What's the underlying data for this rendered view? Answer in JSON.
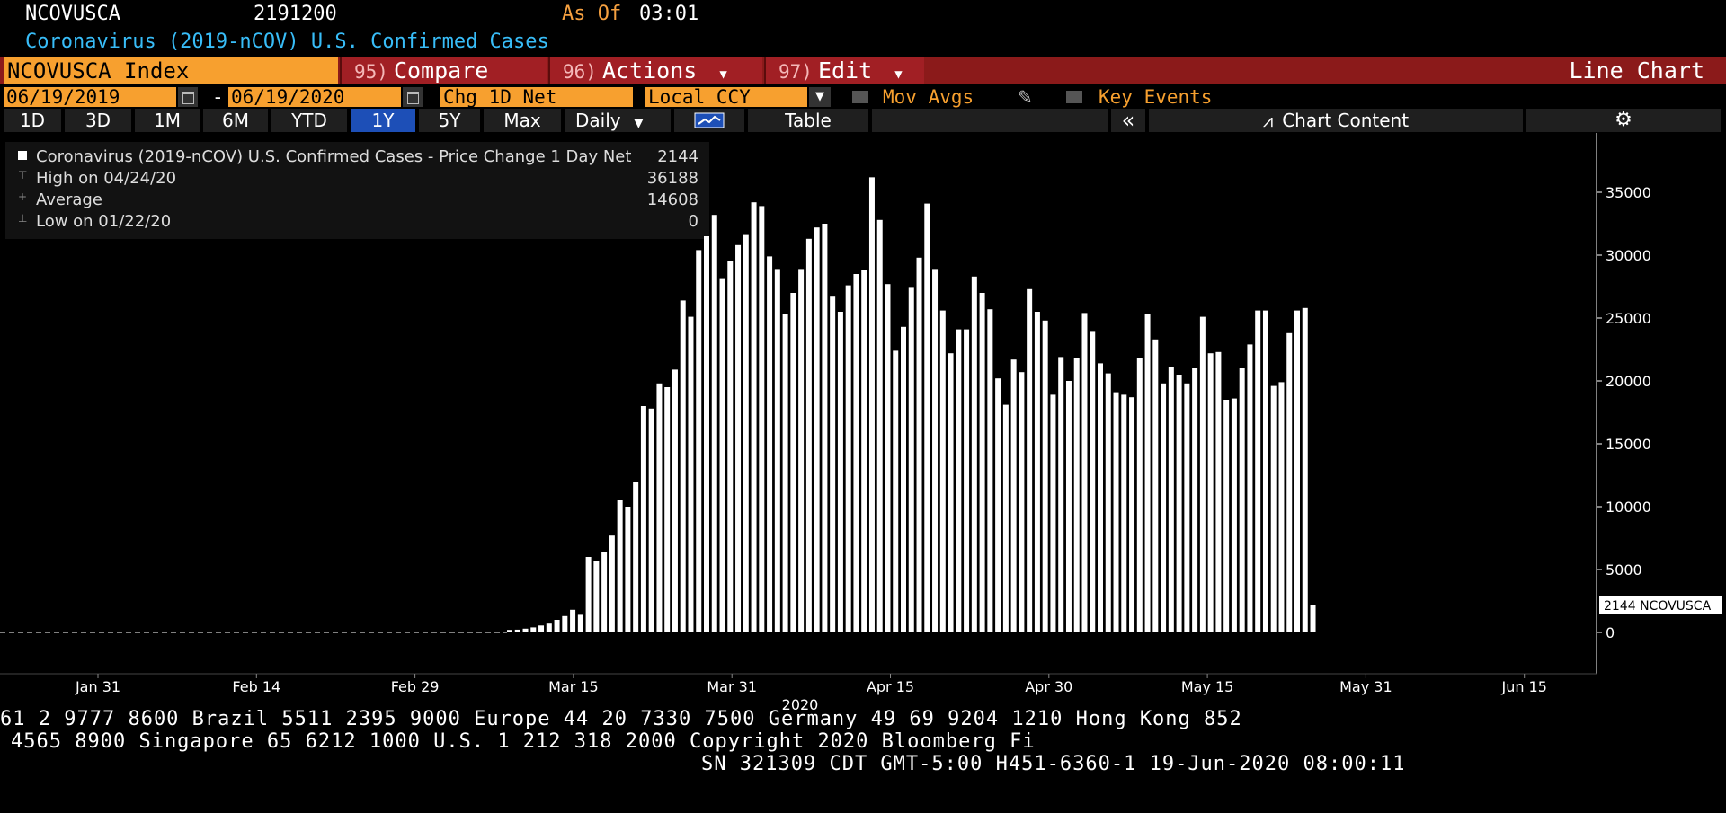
{
  "header": {
    "ticker": "NCOVUSCA",
    "last_value": "2191200",
    "as_of_label": "As Of",
    "as_of_time": "03:01",
    "subtitle": "Coronavirus (2019-nCOV) U.S. Confirmed Cases"
  },
  "menubar": {
    "index_name": "NCOVUSCA Index",
    "compare_num": "95)",
    "compare_label": "Compare",
    "actions_num": "96)",
    "actions_label": "Actions",
    "edit_num": "97)",
    "edit_label": "Edit",
    "chart_type": "Line Chart"
  },
  "controls": {
    "start_date": "06/19/2019",
    "date_sep": "-",
    "end_date": "06/19/2020",
    "field": "Chg 1D Net",
    "currency": "Local CCY",
    "mov_avgs": "Mov Avgs",
    "key_events": "Key Events"
  },
  "tabs": {
    "periods": [
      "1D",
      "3D",
      "1M",
      "6M",
      "YTD",
      "1Y",
      "5Y",
      "Max"
    ],
    "active_period": "1Y",
    "frequency": "Daily",
    "table": "Table",
    "chart_content": "Chart Content",
    "collapse_glyph": "«",
    "settings_glyph": "⚙"
  },
  "legend": {
    "series_label": "Coronavirus (2019-nCOV) U.S. Confirmed Cases - Price Change 1 Day Net",
    "series_last": "2144",
    "high_label": "High on 04/24/20",
    "high_value": "36188",
    "avg_label": "Average",
    "avg_value": "14608",
    "low_label": "Low on 01/22/20",
    "low_value": "0"
  },
  "chart_data": {
    "type": "bar",
    "series_name": "NCOVUSCA",
    "last_label": "2144 NCOVUSCA",
    "x_tick_labels": [
      "Jan 31",
      "Feb 14",
      "Feb 29",
      "Mar 15",
      "Mar 31",
      "Apr 15",
      "Apr 30",
      "May 15",
      "May 31",
      "Jun 15"
    ],
    "x_year_label": "2020",
    "y_ticks": [
      0,
      5000,
      10000,
      15000,
      20000,
      25000,
      30000,
      35000
    ],
    "ylim": [
      -3500,
      39500
    ],
    "colors": {
      "bar": "#ffffff",
      "background": "#000000",
      "axis": "#ffffff"
    },
    "values": [
      200,
      220,
      300,
      400,
      550,
      700,
      1000,
      1300,
      1800,
      1400,
      6000,
      5700,
      6400,
      7700,
      10500,
      10000,
      12000,
      18000,
      17800,
      19800,
      19500,
      20900,
      26400,
      25100,
      30400,
      31500,
      33200,
      28100,
      29500,
      30800,
      31600,
      34200,
      33900,
      29900,
      28900,
      25300,
      27000,
      28900,
      31300,
      32200,
      32500,
      26700,
      25500,
      27600,
      28500,
      28800,
      36188,
      32800,
      27700,
      22400,
      24300,
      27400,
      29800,
      34100,
      28900,
      25600,
      22200,
      24100,
      24100,
      28300,
      27000,
      25700,
      20200,
      18100,
      21700,
      20700,
      27300,
      25500,
      24800,
      18900,
      21900,
      20000,
      21800,
      25400,
      23900,
      21400,
      20600,
      19100,
      18900,
      18700,
      21800,
      25300,
      23300,
      19800,
      21100,
      20500,
      19800,
      21000,
      25100,
      22200,
      22300,
      18500,
      18600,
      21000,
      22900,
      25600,
      25600,
      19600,
      19900,
      23800,
      25600,
      25800,
      2144
    ]
  },
  "footer": {
    "line1": "61 2 9777 8600 Brazil 5511 2395 9000 Europe 44 20 7330 7500 Germany 49 69 9204 1210 Hong Kong 852",
    "line2": "4565 8900       Singapore 65 6212 1000      U.S. 1 212 318 2000       Copyright 2020 Bloomberg Fi",
    "line3": "SN 321309 CDT  GMT-5:00 H451-6360-1 19-Jun-2020 08:00:11"
  }
}
